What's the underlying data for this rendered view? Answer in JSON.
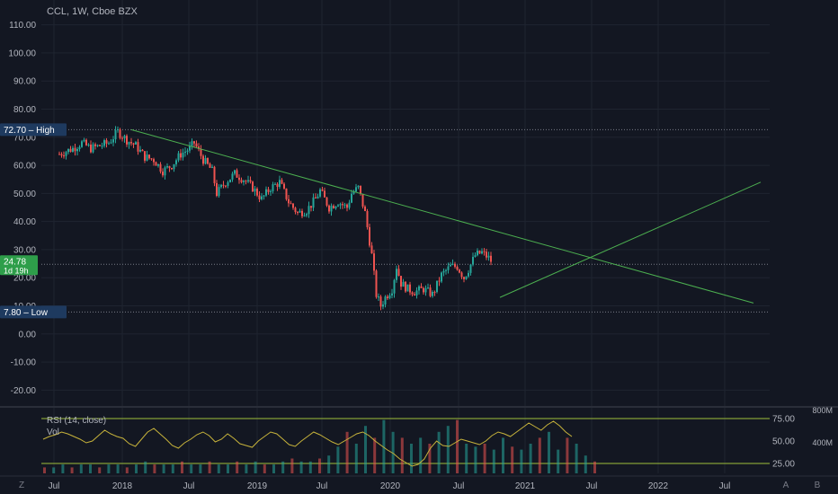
{
  "header": {
    "title": "CCL, 1W, Cboe BZX"
  },
  "colors": {
    "background": "#131722",
    "grid": "#1f2430",
    "axis_text": "#b2b5be",
    "up": "#26a69a",
    "down": "#ef5350",
    "trendline": "#4caf50",
    "rsi_line": "#c7b33b",
    "rsi_band": "#9fbf3b",
    "high_tag": "#1e3a5f",
    "price_tag": "#2e9e4a"
  },
  "tags": {
    "high_value": "72.70",
    "high_label": "High",
    "low_value": "7.80",
    "low_label": "Low",
    "last_price": "24.78",
    "countdown": "1d 19h"
  },
  "rsi_panel": {
    "label": "RSI (14, close)",
    "vol_label": "Vol",
    "levels": [
      "75.00",
      "50.00",
      "25.00"
    ],
    "vol_levels": [
      "800M",
      "400M"
    ]
  },
  "toolbar": {
    "left": "Z",
    "right_a": "A",
    "right_b": "B"
  },
  "chart_data": {
    "type": "candlestick",
    "symbol": "CCL",
    "interval": "1W",
    "exchange": "Cboe BZX",
    "ylim": [
      -25,
      115
    ],
    "y_ticks": [
      "110.00",
      "100.00",
      "90.00",
      "80.00",
      "70.00",
      "60.00",
      "50.00",
      "40.00",
      "30.00",
      "20.00",
      "10.00",
      "0.00",
      "-10.00",
      "-20.00"
    ],
    "x_ticks": [
      "Jul",
      "2018",
      "Jul",
      "2019",
      "Jul",
      "2020",
      "Jul",
      "2021",
      "Jul",
      "2022",
      "Jul"
    ],
    "high": 72.7,
    "low": 7.8,
    "last": 24.78,
    "price_path": [
      [
        0,
        64
      ],
      [
        6,
        66
      ],
      [
        10,
        68
      ],
      [
        14,
        66
      ],
      [
        18,
        67
      ],
      [
        22,
        68
      ],
      [
        26,
        72
      ],
      [
        30,
        69
      ],
      [
        34,
        67
      ],
      [
        38,
        63
      ],
      [
        42,
        62
      ],
      [
        46,
        58
      ],
      [
        50,
        60
      ],
      [
        54,
        64
      ],
      [
        58,
        66
      ],
      [
        60,
        68
      ],
      [
        64,
        62
      ],
      [
        68,
        58
      ],
      [
        70,
        50
      ],
      [
        74,
        54
      ],
      [
        78,
        57
      ],
      [
        82,
        55
      ],
      [
        86,
        52
      ],
      [
        90,
        48
      ],
      [
        94,
        52
      ],
      [
        98,
        54
      ],
      [
        102,
        47
      ],
      [
        106,
        43
      ],
      [
        110,
        44
      ],
      [
        114,
        48
      ],
      [
        116,
        51
      ],
      [
        120,
        45
      ],
      [
        124,
        47
      ],
      [
        128,
        45
      ],
      [
        130,
        50
      ],
      [
        133,
        52
      ],
      [
        136,
        43
      ],
      [
        139,
        28
      ],
      [
        141,
        14
      ],
      [
        143,
        10
      ],
      [
        145,
        13
      ],
      [
        148,
        16
      ],
      [
        150,
        24
      ],
      [
        152,
        18
      ],
      [
        155,
        16
      ],
      [
        158,
        15
      ],
      [
        162,
        16
      ],
      [
        166,
        14
      ],
      [
        170,
        21
      ],
      [
        174,
        24
      ],
      [
        177,
        24
      ],
      [
        180,
        20
      ],
      [
        182,
        23
      ],
      [
        185,
        28
      ],
      [
        188,
        29
      ],
      [
        191,
        27
      ],
      [
        193,
        25
      ]
    ],
    "trendlines": [
      {
        "from": [
          "2018-01",
          72.7
        ],
        "to": [
          "2022-09",
          12
        ]
      },
      {
        "from": [
          "2020-11",
          13
        ],
        "to": [
          "2022-09",
          54
        ]
      }
    ],
    "rsi": {
      "period": 14,
      "upper": 75,
      "lower": 25,
      "values": [
        52,
        55,
        57,
        60,
        58,
        55,
        52,
        48,
        50,
        56,
        62,
        58,
        55,
        53,
        47,
        44,
        52,
        60,
        64,
        58,
        52,
        45,
        42,
        48,
        52,
        57,
        60,
        56,
        49,
        52,
        58,
        53,
        47,
        45,
        43,
        50,
        55,
        60,
        58,
        52,
        46,
        44,
        50,
        55,
        60,
        57,
        53,
        49,
        46,
        50,
        54,
        58,
        60,
        56,
        50,
        45,
        40,
        36,
        30,
        26,
        22,
        24,
        30,
        42,
        50,
        45,
        44,
        48,
        52,
        50,
        48,
        46,
        50,
        56,
        60,
        58,
        55,
        60,
        65,
        70,
        66,
        62,
        68,
        72,
        67,
        60,
        55
      ]
    },
    "volume": {
      "values": [
        2,
        2,
        3,
        2,
        3,
        3,
        2,
        3,
        3,
        2,
        3,
        4,
        3,
        3,
        3,
        4,
        3,
        3,
        4,
        3,
        3,
        4,
        3,
        4,
        3,
        3,
        4,
        5,
        4,
        4,
        5,
        6,
        9,
        14,
        10,
        16,
        12,
        18,
        14,
        12,
        10,
        12,
        10,
        14,
        16,
        18,
        10,
        9,
        10,
        8,
        12,
        9,
        8,
        10,
        12,
        14,
        8,
        12,
        10,
        6,
        4
      ]
    }
  }
}
